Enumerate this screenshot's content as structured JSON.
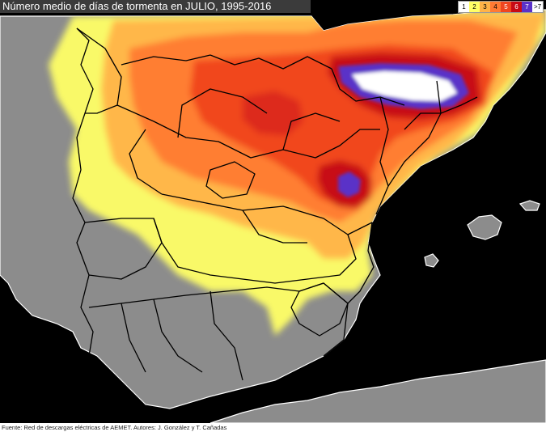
{
  "title": "Número medio de días de tormenta en JULIO, 1995-2016",
  "footer": "Fuente: Red de descargas eléctricas de AEMET. Autores: J. González y T. Cañadas",
  "legend": [
    {
      "label": "1",
      "color": "#ffffff"
    },
    {
      "label": "2",
      "color": "#ffff66"
    },
    {
      "label": "3",
      "color": "#ffb347"
    },
    {
      "label": "4",
      "color": "#ff7a33"
    },
    {
      "label": "5",
      "color": "#f0451f"
    },
    {
      "label": "6",
      "color": "#c80a14"
    },
    {
      "label": "7",
      "color": "#5a32c8"
    },
    {
      "label": ">7",
      "color": "#ffffff"
    }
  ],
  "colors": {
    "sea": "#000000",
    "land": "#8c8c8c",
    "coast": "#ffffff",
    "borders": "#000000"
  }
}
